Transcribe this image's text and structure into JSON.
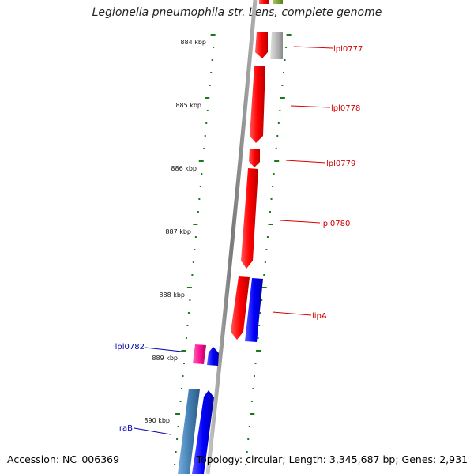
{
  "title": "Legionella pneumophila str. Lens, complete genome",
  "footer": {
    "accession": "Accession: NC_006369",
    "stats": "Topology: circular; Length: 3,345,687 bp; Genes: 2,931"
  },
  "ticks": [
    "884 kbp",
    "885 kbp",
    "886 kbp",
    "887 kbp",
    "888 kbp",
    "889 kbp",
    "890 kbp"
  ],
  "genes": [
    {
      "name": "lpl0777",
      "color": "#d40000"
    },
    {
      "name": "lpl0778",
      "color": "#d40000"
    },
    {
      "name": "lpl0779",
      "color": "#d40000"
    },
    {
      "name": "lpl0780",
      "color": "#d40000"
    },
    {
      "name": "lipA",
      "color": "#d40000"
    },
    {
      "name": "lpl0782",
      "color": "#0000b0"
    },
    {
      "name": "iraB",
      "color": "#0000b0"
    }
  ],
  "colors": {
    "forward": "#ff0000",
    "reverse": "#0000ff",
    "pink": "#ff1493",
    "gray": "#bbbbbb",
    "olive": "#7aa030",
    "steel": "#4682b4",
    "tick": "#1a7a1a",
    "backbone": "#888888"
  }
}
